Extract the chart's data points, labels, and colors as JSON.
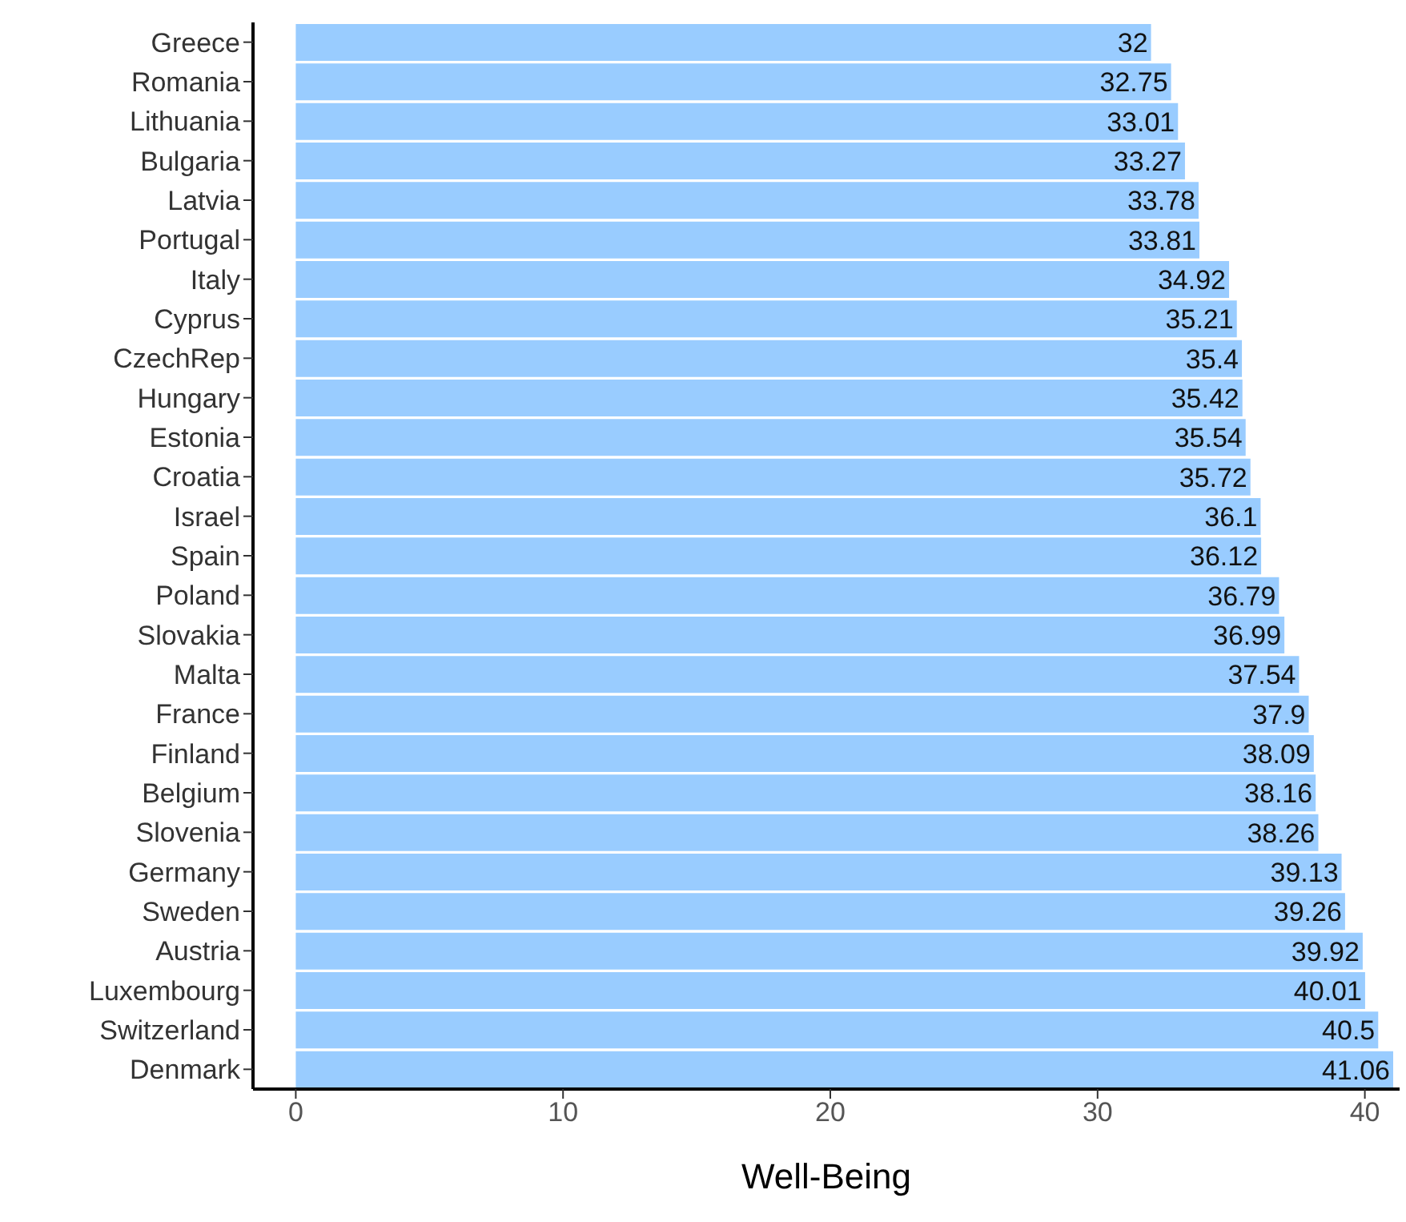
{
  "chart_data": {
    "type": "bar",
    "orientation": "horizontal",
    "xlabel": "Well-Being",
    "categories": [
      "Greece",
      "Romania",
      "Lithuania",
      "Bulgaria",
      "Latvia",
      "Portugal",
      "Italy",
      "Cyprus",
      "CzechRep",
      "Hungary",
      "Estonia",
      "Croatia",
      "Israel",
      "Spain",
      "Poland",
      "Slovakia",
      "Malta",
      "France",
      "Finland",
      "Belgium",
      "Slovenia",
      "Germany",
      "Sweden",
      "Austria",
      "Luxembourg",
      "Switzerland",
      "Denmark"
    ],
    "values": [
      32,
      32.75,
      33.01,
      33.27,
      33.78,
      33.81,
      34.92,
      35.21,
      35.4,
      35.42,
      35.54,
      35.72,
      36.1,
      36.12,
      36.79,
      36.99,
      37.54,
      37.9,
      38.09,
      38.16,
      38.26,
      39.13,
      39.26,
      39.92,
      40.01,
      40.5,
      41.06
    ],
    "color": "#99ccff",
    "xlim": [
      -1.6,
      41.3
    ],
    "xticks": [
      0,
      10,
      20,
      30,
      40
    ],
    "grid": false,
    "data_labels": true
  }
}
